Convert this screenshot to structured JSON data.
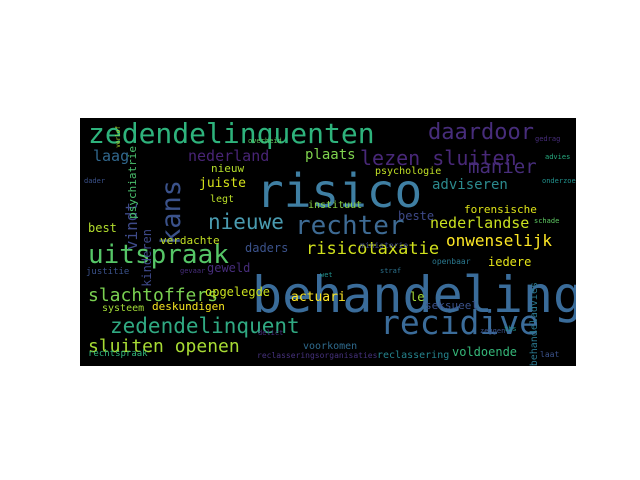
{
  "palette": {
    "teal": "#21918c",
    "blue": "#3b528b",
    "purple": "#472d7b",
    "green": "#5ec962",
    "yellow": "#d8e219",
    "lightgreen": "#addc30",
    "cyan": "#2c728e",
    "aqua": "#27ad81"
  },
  "words": [
    {
      "text": "behandeling",
      "color": "#3a6c9a"
    },
    {
      "text": "risico",
      "color": "#3f7fa3"
    },
    {
      "text": "zedendelinquenten",
      "color": "#2eb37c"
    },
    {
      "text": "recidive",
      "color": "#3b6c9a"
    },
    {
      "text": "daardoor",
      "color": "#472d7b"
    },
    {
      "text": "lezen sluiten",
      "color": "#482878"
    },
    {
      "text": "rechter",
      "color": "#3e6b94"
    },
    {
      "text": "uitspraak",
      "color": "#56c667"
    },
    {
      "text": "zedendelinquent",
      "color": "#30a982"
    },
    {
      "text": "sluiten openen",
      "color": "#a8db34"
    },
    {
      "text": "nieuwe",
      "color": "#4a9bb0"
    },
    {
      "text": "kans",
      "color": "#3b528b"
    },
    {
      "text": "slachtoffers",
      "color": "#7ad151"
    },
    {
      "text": "risicotaxatie",
      "color": "#d1e11c"
    },
    {
      "text": "onwenselijk",
      "color": "#fde725"
    },
    {
      "text": "manier",
      "color": "#472d7b"
    },
    {
      "text": "adviseren",
      "color": "#2c8a8e"
    },
    {
      "text": "nederlandse",
      "color": "#c9e020"
    },
    {
      "text": "laag",
      "color": "#31688e"
    },
    {
      "text": "vindt",
      "color": "#3e4a89"
    },
    {
      "text": "nederland",
      "color": "#482475"
    },
    {
      "text": "plaats",
      "color": "#7fd34e"
    },
    {
      "text": "nieuw",
      "color": "#b5de2b"
    },
    {
      "text": "juiste",
      "color": "#d5e21a"
    },
    {
      "text": "actuari",
      "color": "#fde725"
    },
    {
      "text": "le",
      "color": "#a5db36"
    },
    {
      "text": "seksueel",
      "color": "#3b528b"
    },
    {
      "text": "voorkomen",
      "color": "#2f6b8e"
    },
    {
      "text": "reclassering",
      "color": "#25848e"
    },
    {
      "text": "voldoende",
      "color": "#35b779"
    },
    {
      "text": "iedere",
      "color": "#e5e419"
    },
    {
      "text": "forensische",
      "color": "#dde318"
    },
    {
      "text": "beste",
      "color": "#3e4a89"
    },
    {
      "text": "daders",
      "color": "#3b528b"
    },
    {
      "text": "opgelegde",
      "color": "#cae11f"
    },
    {
      "text": "deskundigen",
      "color": "#f6e620"
    },
    {
      "text": "systeem",
      "color": "#a2da37"
    },
    {
      "text": "geweld",
      "color": "#472d7b"
    },
    {
      "text": "justitie",
      "color": "#3b528b"
    },
    {
      "text": "verdachte",
      "color": "#c2df23"
    },
    {
      "text": "best",
      "color": "#b2dd2d"
    },
    {
      "text": "kinderen",
      "color": "#3e4989"
    },
    {
      "text": "psychiatrie",
      "color": "#4ac16d"
    },
    {
      "text": "psychologie",
      "color": "#c0df25"
    },
    {
      "text": "legt",
      "color": "#bade28"
    },
    {
      "text": "instituut",
      "color": "#8bd646"
    },
    {
      "text": "behandeladvies",
      "color": "#2a778e"
    },
    {
      "text": "rechtspraak",
      "color": "#31b57b"
    },
    {
      "text": "reclasseringsorganisaties",
      "color": "#46327e"
    },
    {
      "text": "ministerie",
      "color": "#3e4a89"
    },
    {
      "text": "openbaar",
      "color": "#2a788e"
    },
    {
      "text": "laat",
      "color": "#3b528b"
    },
    {
      "text": "gedrag",
      "color": "#472d7b"
    },
    {
      "text": "onderzoek",
      "color": "#21918c"
    },
    {
      "text": "overheid",
      "color": "#5ec962"
    },
    {
      "text": "zeggen",
      "color": "#3b528b"
    },
    {
      "text": "wet",
      "color": "#21918c"
    },
    {
      "text": "gevaar",
      "color": "#472d7b"
    },
    {
      "text": "schade",
      "color": "#5ec962"
    },
    {
      "text": "straf",
      "color": "#2c728e"
    },
    {
      "text": "verlof",
      "color": "#addc30"
    },
    {
      "text": "advies",
      "color": "#27ad81"
    },
    {
      "text": "dader",
      "color": "#3b528b"
    },
    {
      "text": "delict",
      "color": "#472d7b"
    },
    {
      "text": "tbs",
      "color": "#21918c"
    }
  ]
}
